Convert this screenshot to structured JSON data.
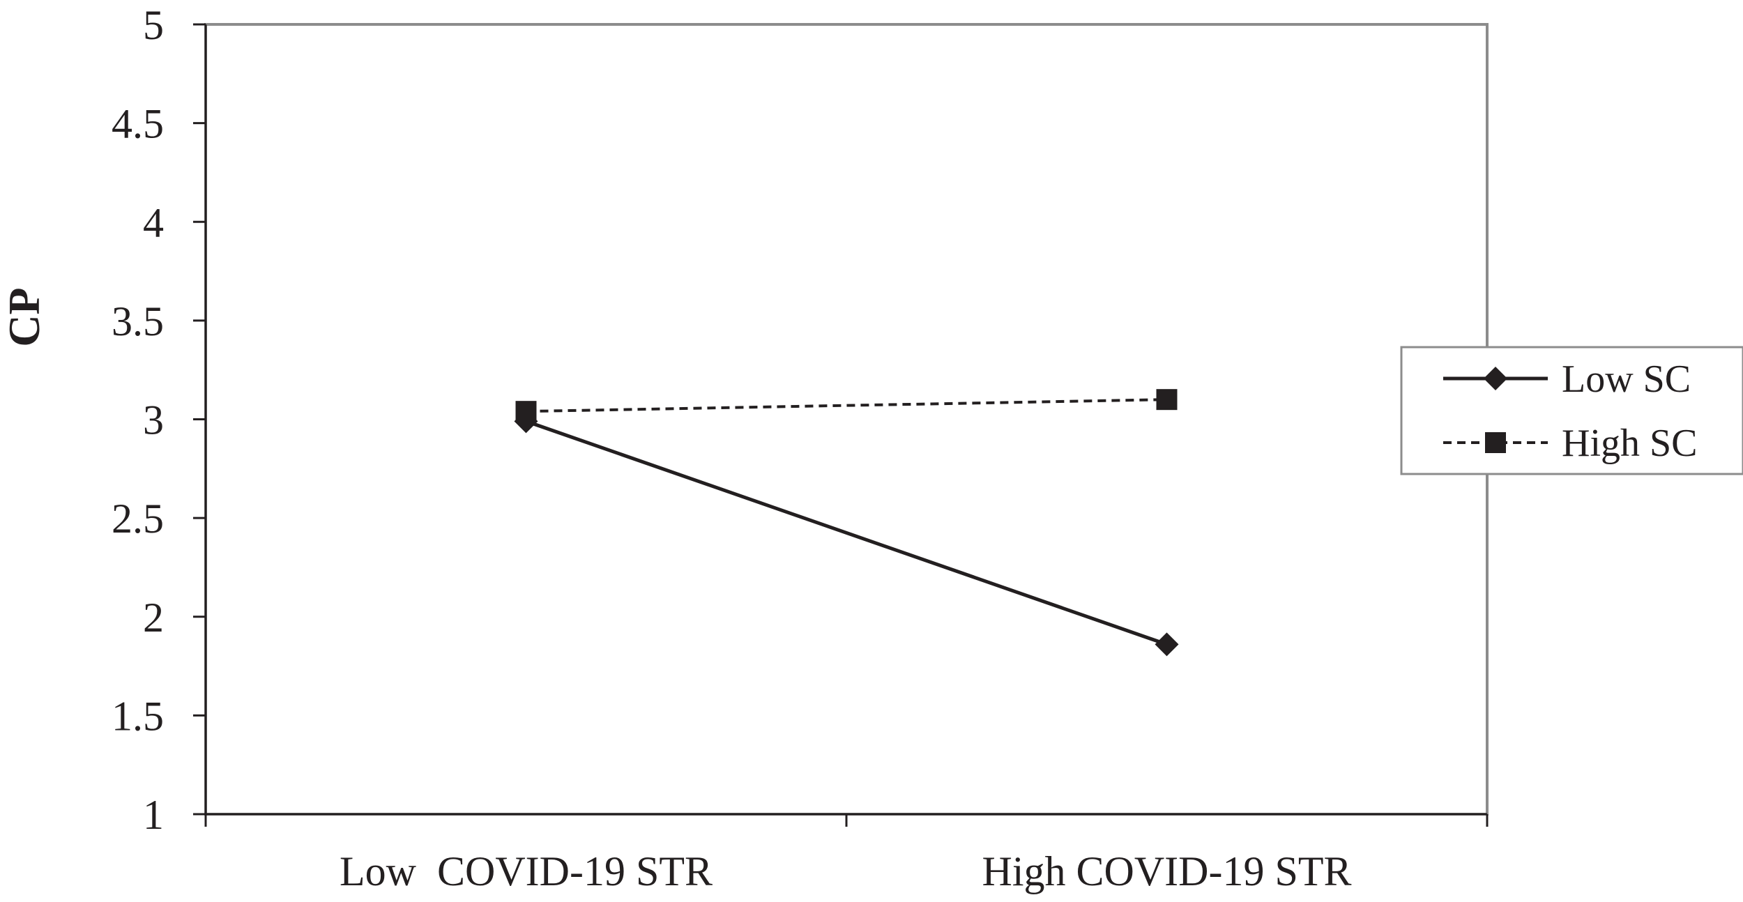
{
  "chart_data": {
    "type": "line",
    "title": "",
    "xlabel": "",
    "ylabel": "CP",
    "categories": [
      "Low  COVID-19 STR",
      "High COVID-19 STR"
    ],
    "ylim": [
      1,
      5
    ],
    "yticks": [
      "1",
      "1.5",
      "2",
      "2.5",
      "3",
      "3.5",
      "4",
      "4.5",
      "5"
    ],
    "grid": false,
    "legend_position": "right",
    "series": [
      {
        "name": "Low SC",
        "values": [
          2.99,
          1.86
        ],
        "line_style": "solid",
        "marker": "diamond",
        "color": "#231f20"
      },
      {
        "name": "High SC",
        "values": [
          3.04,
          3.1
        ],
        "line_style": "dashed",
        "marker": "square",
        "color": "#231f20"
      }
    ],
    "colors": {
      "frame": "#8c8c8c",
      "ink": "#231f20"
    }
  }
}
